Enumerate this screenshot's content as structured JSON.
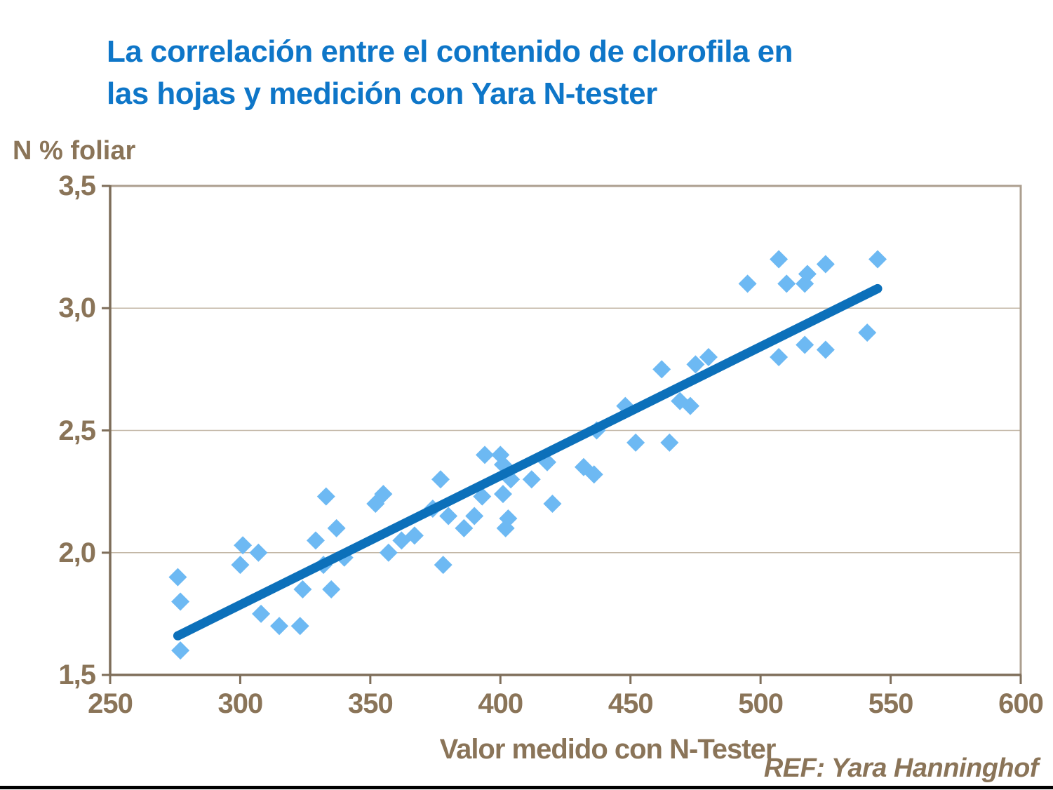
{
  "slide": {
    "title_line1": "La correlación entre el contenido de clorofila en",
    "title_line2": "las hojas y medición con Yara N-tester",
    "ref_text": "REF: Yara Hanninghof"
  },
  "chart_data": {
    "type": "scatter",
    "title": "La correlación entre el contenido de clorofila en las hojas y medición con Yara N-tester",
    "xlabel": "Valor medido con N-Tester",
    "ylabel": "N % foliar",
    "xlim": [
      250,
      600
    ],
    "ylim": [
      1.5,
      3.5
    ],
    "x_ticks": {
      "values": [
        250,
        300,
        350,
        400,
        450,
        500,
        550,
        600
      ],
      "labels": [
        "250",
        "300",
        "350",
        "400",
        "450",
        "500",
        "550",
        "600"
      ]
    },
    "y_ticks": {
      "values": [
        1.5,
        2.0,
        2.5,
        3.0,
        3.5
      ],
      "labels": [
        "1,5",
        "2,0",
        "2,5",
        "3,0",
        "3,5"
      ]
    },
    "y_gridlines": [
      2.0,
      2.5,
      3.0
    ],
    "grid": "horizontal-only",
    "legend": "none",
    "marker_shape": "diamond",
    "points": [
      [
        276,
        1.9
      ],
      [
        277,
        1.8
      ],
      [
        277,
        1.6
      ],
      [
        300,
        1.95
      ],
      [
        301,
        2.03
      ],
      [
        307,
        2.0
      ],
      [
        308,
        1.75
      ],
      [
        315,
        1.7
      ],
      [
        323,
        1.7
      ],
      [
        324,
        1.85
      ],
      [
        329,
        2.05
      ],
      [
        332,
        1.95
      ],
      [
        333,
        2.23
      ],
      [
        335,
        1.85
      ],
      [
        337,
        2.1
      ],
      [
        340,
        1.98
      ],
      [
        352,
        2.2
      ],
      [
        355,
        2.24
      ],
      [
        357,
        2.0
      ],
      [
        362,
        2.05
      ],
      [
        367,
        2.07
      ],
      [
        374,
        2.18
      ],
      [
        377,
        2.3
      ],
      [
        378,
        1.95
      ],
      [
        380,
        2.15
      ],
      [
        386,
        2.1
      ],
      [
        390,
        2.15
      ],
      [
        393,
        2.23
      ],
      [
        394,
        2.4
      ],
      [
        400,
        2.4
      ],
      [
        401,
        2.36
      ],
      [
        401,
        2.24
      ],
      [
        402,
        2.1
      ],
      [
        403,
        2.14
      ],
      [
        404,
        2.3
      ],
      [
        412,
        2.3
      ],
      [
        418,
        2.37
      ],
      [
        420,
        2.2
      ],
      [
        432,
        2.35
      ],
      [
        436,
        2.32
      ],
      [
        437,
        2.5
      ],
      [
        448,
        2.6
      ],
      [
        452,
        2.45
      ],
      [
        462,
        2.75
      ],
      [
        465,
        2.45
      ],
      [
        469,
        2.62
      ],
      [
        473,
        2.6
      ],
      [
        475,
        2.77
      ],
      [
        480,
        2.8
      ],
      [
        495,
        3.1
      ],
      [
        507,
        3.2
      ],
      [
        507,
        2.8
      ],
      [
        510,
        3.1
      ],
      [
        517,
        2.85
      ],
      [
        517,
        3.1
      ],
      [
        518,
        3.14
      ],
      [
        525,
        3.18
      ],
      [
        525,
        2.83
      ],
      [
        541,
        2.9
      ],
      [
        545,
        3.2
      ]
    ],
    "trendline": {
      "x1": 276,
      "y1": 1.66,
      "x2": 545,
      "y2": 3.08
    },
    "colors": {
      "marker": "#6db9f3",
      "trend": "#0c70ba",
      "grid": "#c3b7a6",
      "border": "#ac9f8f",
      "axis": "#7e6e5a",
      "text_brown": "#8a7458",
      "title_blue": "#0e76c8",
      "divider": "#000000"
    }
  }
}
